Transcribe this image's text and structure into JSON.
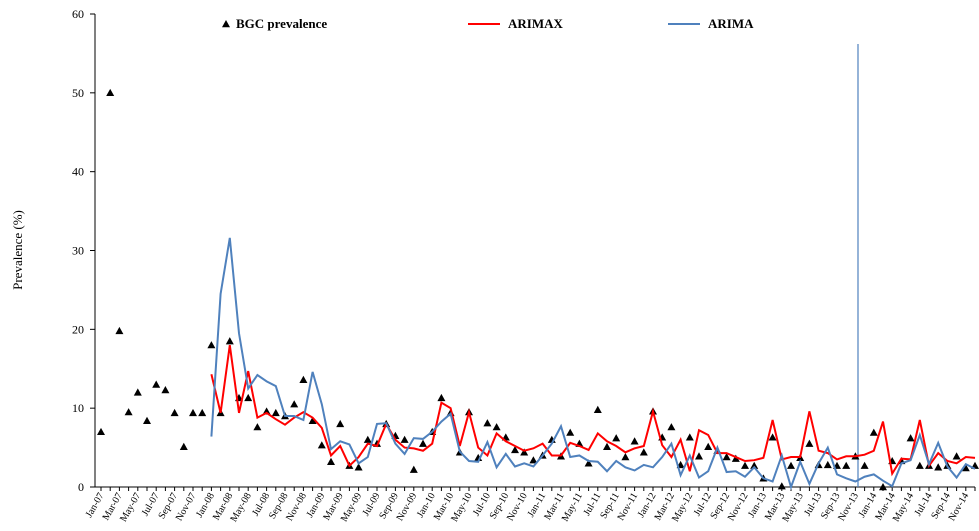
{
  "chart_data": {
    "type": "line",
    "ylabel": "Prevalence (%)",
    "ylim": [
      0,
      60
    ],
    "yticks": [
      0,
      10,
      20,
      30,
      40,
      50,
      60
    ],
    "categories": [
      "Jan-07",
      null,
      "Mar-07",
      null,
      "May-07",
      null,
      "Jul-07",
      null,
      "Sep-07",
      null,
      "Nov-07",
      null,
      "Jan-08",
      null,
      "Mar-08",
      null,
      "May-08",
      null,
      "Jul-08",
      null,
      "Sep-08",
      null,
      "Nov-08",
      null,
      "Jan-09",
      null,
      "Mar-09",
      null,
      "May-09",
      null,
      "Jul-09",
      null,
      "Sep-09",
      null,
      "Nov-09",
      null,
      "Jan-10",
      null,
      "Mar-10",
      null,
      "May-10",
      null,
      "Jul-10",
      null,
      "Sep-10",
      null,
      "Nov-10",
      null,
      "Jan-11",
      null,
      "Mar-11",
      null,
      "May-11",
      null,
      "Jul-11",
      null,
      "Sep-11",
      null,
      "Nov-11",
      null,
      "Jan-12",
      null,
      "Mar-12",
      null,
      "May-12",
      null,
      "Jul-12",
      null,
      "Sep-12",
      null,
      "Nov-12",
      null,
      "Jan-13",
      null,
      "Mar-13",
      null,
      "May-13",
      null,
      "Jul-13",
      null,
      "Sep-13",
      null,
      "Nov-13",
      null,
      "Jan-14",
      null,
      "Mar-14",
      null,
      "May-14",
      null,
      "Jul-14",
      null,
      "Sep-14",
      null,
      "Nov-14",
      null
    ],
    "series": [
      {
        "name": "BGC prevalence",
        "color": "#000000",
        "style": "markers",
        "values": [
          7.0,
          50,
          19.8,
          9.5,
          12,
          8.4,
          13,
          12.3,
          9.4,
          5.1,
          9.4,
          9.4,
          18,
          9.4,
          18.5,
          11.3,
          11.3,
          7.6,
          9.6,
          9.4,
          9,
          10.5,
          13.6,
          8.4,
          5.3,
          3.2,
          8,
          2.7,
          2.5,
          6,
          5.5,
          8,
          6.5,
          6,
          2.2,
          5.5,
          7,
          11.3,
          9.4,
          4.4,
          9.5,
          3.7,
          8.1,
          7.6,
          6.3,
          4.7,
          4.4,
          3.4,
          4,
          6,
          3.9,
          6.9,
          5.5,
          3,
          9.8,
          5.1,
          6.2,
          3.8,
          5.8,
          4.4,
          9.6,
          6.3,
          7.6,
          2.8,
          6.3,
          3.9,
          5.1,
          4.6,
          3.8,
          3.6,
          2.7,
          2.7,
          1.1,
          6.3,
          0.1,
          2.7,
          3.7,
          5.5,
          2.8,
          2.8,
          2.7,
          2.7,
          3.9,
          2.7,
          6.9,
          0,
          3.3,
          3.3,
          6.2,
          2.7,
          2.7,
          2.5,
          2.7,
          3.9,
          2.4,
          2.7
        ]
      },
      {
        "name": "ARIMAX",
        "color": "#ff0000",
        "style": "line",
        "values": [
          null,
          null,
          null,
          null,
          null,
          null,
          null,
          null,
          null,
          null,
          null,
          null,
          14.3,
          9.4,
          18,
          9.4,
          14.7,
          8.8,
          9.4,
          8.6,
          7.9,
          8.8,
          9.5,
          8.8,
          7.5,
          4,
          5.2,
          2.7,
          3.8,
          5.5,
          5.2,
          8,
          6,
          5,
          4.9,
          4.6,
          5.5,
          10.7,
          10,
          5.2,
          9.5,
          5,
          4,
          6.8,
          5.8,
          5.2,
          4.6,
          4.9,
          5.5,
          4,
          4,
          5.6,
          5.2,
          4.7,
          6.8,
          5.8,
          5.2,
          4.4,
          4.9,
          5.2,
          9.6,
          5.3,
          3.8,
          6,
          2,
          7.2,
          6.6,
          4.3,
          4.3,
          3.8,
          3.3,
          3.4,
          3.7,
          8.5,
          3.5,
          3.8,
          3.8,
          9.6,
          4.6,
          4.3,
          3.5,
          3.9,
          3.9,
          4.1,
          4.6,
          8.3,
          1.7,
          3.6,
          3.5,
          8.5,
          2.7,
          4.3,
          3.3,
          3,
          3.8,
          3.7
        ]
      },
      {
        "name": "ARIMA",
        "color": "#4f81bd",
        "style": "line",
        "values": [
          null,
          null,
          null,
          null,
          null,
          null,
          null,
          null,
          null,
          null,
          null,
          null,
          6.4,
          24.5,
          31.6,
          19.5,
          12.5,
          14.2,
          13.4,
          12.8,
          9,
          9,
          8.5,
          14.6,
          10.5,
          4.8,
          5.8,
          5.4,
          3,
          3.8,
          8,
          8.1,
          5.5,
          4.2,
          6.2,
          6.1,
          7,
          8.3,
          9.3,
          4.5,
          3.3,
          3.2,
          5.7,
          2.5,
          4.2,
          2.6,
          3,
          2.6,
          4,
          5.5,
          7.7,
          3.8,
          4,
          3.3,
          3.2,
          2,
          3.3,
          2.5,
          2.1,
          2.8,
          2.5,
          3.8,
          5.5,
          1.5,
          4,
          1.2,
          2,
          5,
          1.9,
          2,
          1.3,
          2.5,
          1.1,
          0.7,
          4,
          0,
          3.2,
          0.4,
          3,
          5,
          1.6,
          1.1,
          0.7,
          1.3,
          1.6,
          0.8,
          0.1,
          3,
          3.4,
          6.6,
          2.9,
          5.6,
          2.6,
          1.2,
          2.9,
          2.3
        ]
      }
    ]
  }
}
